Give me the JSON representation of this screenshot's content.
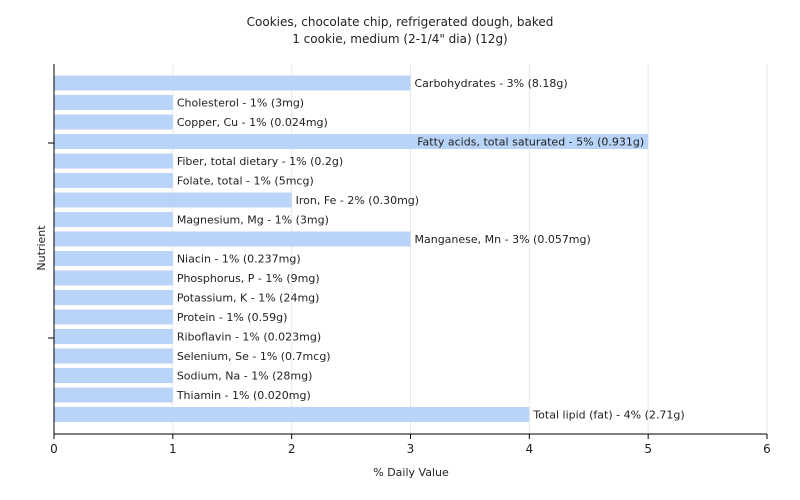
{
  "chart_data": {
    "type": "bar",
    "orientation": "horizontal",
    "title": "Cookies, chocolate chip, refrigerated dough, baked",
    "subtitle": "1 cookie, medium (2-1/4\" dia) (12g)",
    "xlabel": "% Daily Value",
    "ylabel": "Nutrient",
    "xlim": [
      0,
      6
    ],
    "xticks": [
      "0",
      "1",
      "2",
      "3",
      "4",
      "5",
      "6"
    ],
    "grid": true,
    "bar_color": "#b8d4f8",
    "categories": [
      "Carbohydrates",
      "Cholesterol",
      "Copper, Cu",
      "Fatty acids, total saturated",
      "Fiber, total dietary",
      "Folate, total",
      "Iron, Fe",
      "Magnesium, Mg",
      "Manganese, Mn",
      "Niacin",
      "Phosphorus, P",
      "Potassium, K",
      "Protein",
      "Riboflavin",
      "Selenium, Se",
      "Sodium, Na",
      "Thiamin",
      "Total lipid (fat)"
    ],
    "values": [
      3,
      1,
      1,
      5,
      1,
      1,
      2,
      1,
      3,
      1,
      1,
      1,
      1,
      1,
      1,
      1,
      1,
      4
    ],
    "labels": [
      "Carbohydrates - 3% (8.18g)",
      "Cholesterol - 1% (3mg)",
      "Copper, Cu - 1% (0.024mg)",
      "Fatty acids, total saturated - 5% (0.931g)",
      "Fiber, total dietary - 1% (0.2g)",
      "Folate, total - 1% (5mcg)",
      "Iron, Fe - 2% (0.30mg)",
      "Magnesium, Mg - 1% (3mg)",
      "Manganese, Mn - 3% (0.057mg)",
      "Niacin - 1% (0.237mg)",
      "Phosphorus, P - 1% (9mg)",
      "Potassium, K - 1% (24mg)",
      "Protein - 1% (0.59g)",
      "Riboflavin - 1% (0.023mg)",
      "Selenium, Se - 1% (0.7mcg)",
      "Sodium, Na - 1% (28mg)",
      "Thiamin - 1% (0.020mg)",
      "Total lipid (fat) - 4% (2.71g)"
    ]
  }
}
